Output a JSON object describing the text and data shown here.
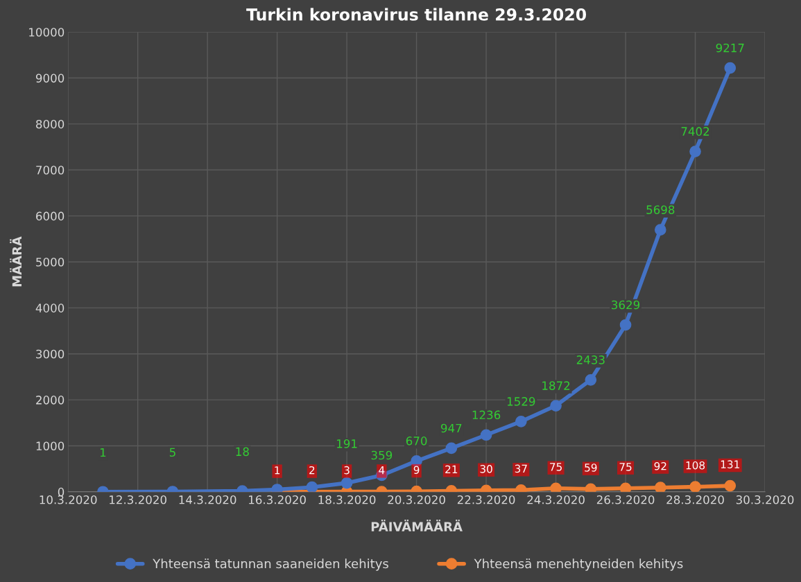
{
  "chart_data": {
    "type": "line",
    "title": "Turkin koronavirus tilanne 29.3.2020",
    "xlabel": "PÄIVÄMÄÄRÄ",
    "ylabel": "MÄÄRÄ",
    "series": [
      {
        "name": "Yhteensä tatunnan saaneiden kehitys",
        "color": "#4472c4",
        "x": [
          "2020-03-11",
          "2020-03-13",
          "2020-03-15",
          "2020-03-16",
          "2020-03-17",
          "2020-03-18",
          "2020-03-19",
          "2020-03-20",
          "2020-03-21",
          "2020-03-22",
          "2020-03-23",
          "2020-03-24",
          "2020-03-25",
          "2020-03-26",
          "2020-03-27",
          "2020-03-28",
          "2020-03-29"
        ],
        "values": [
          1,
          5,
          18,
          50,
          100,
          191,
          359,
          670,
          947,
          1236,
          1529,
          1872,
          2433,
          3629,
          5698,
          7402,
          9217
        ],
        "value_labels": [
          "1",
          "5",
          "18",
          null,
          null,
          "191",
          "359",
          "670",
          "947",
          "1236",
          "1529",
          "1872",
          "2433",
          "3629",
          "5698",
          "7402",
          "9217"
        ]
      },
      {
        "name": "Yhteensä menehtyneiden kehitys",
        "color": "#ed7d31",
        "x": [
          "2020-03-16",
          "2020-03-17",
          "2020-03-18",
          "2020-03-19",
          "2020-03-20",
          "2020-03-21",
          "2020-03-22",
          "2020-03-23",
          "2020-03-24",
          "2020-03-25",
          "2020-03-26",
          "2020-03-27",
          "2020-03-28",
          "2020-03-29"
        ],
        "values": [
          1,
          2,
          3,
          4,
          9,
          21,
          30,
          37,
          75,
          59,
          75,
          92,
          108,
          131
        ],
        "value_labels": [
          "1",
          "2",
          "3",
          "4",
          "9",
          "21",
          "30",
          "37",
          "75",
          "59",
          "75",
          "92",
          "108",
          "131"
        ]
      }
    ],
    "xlim": [
      "2020-03-10",
      "2020-03-30"
    ],
    "xticks": [
      {
        "value": "2020-03-10",
        "label": "10.3.2020"
      },
      {
        "value": "2020-03-12",
        "label": "12.3.2020"
      },
      {
        "value": "2020-03-14",
        "label": "14.3.2020"
      },
      {
        "value": "2020-03-16",
        "label": "16.3.2020"
      },
      {
        "value": "2020-03-18",
        "label": "18.3.2020"
      },
      {
        "value": "2020-03-20",
        "label": "20.3.2020"
      },
      {
        "value": "2020-03-22",
        "label": "22.3.2020"
      },
      {
        "value": "2020-03-24",
        "label": "24.3.2020"
      },
      {
        "value": "2020-03-26",
        "label": "26.3.2020"
      },
      {
        "value": "2020-03-28",
        "label": "28.3.2020"
      },
      {
        "value": "2020-03-30",
        "label": "30.3.2020"
      }
    ],
    "ylim": [
      0,
      10000
    ],
    "yticks": [
      0,
      1000,
      2000,
      3000,
      4000,
      5000,
      6000,
      7000,
      8000,
      9000,
      10000
    ],
    "grid": true,
    "legend": "bottom",
    "marker": "circle",
    "line_style": "solid"
  }
}
